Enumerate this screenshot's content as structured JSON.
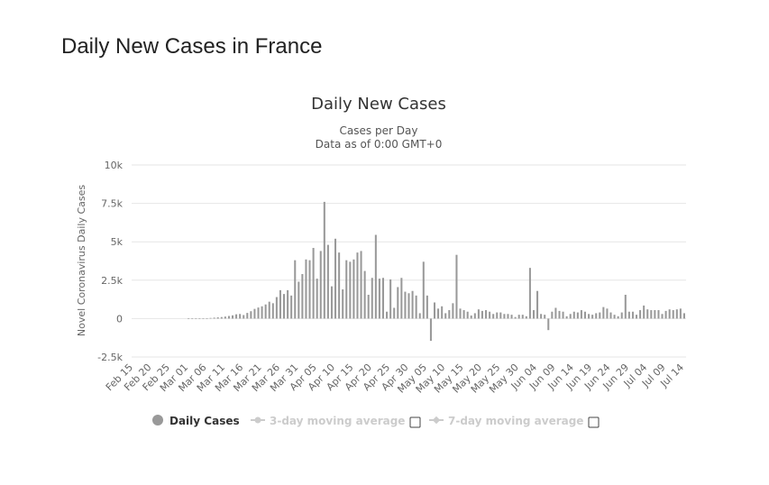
{
  "page": {
    "heading": "Daily New Cases in France"
  },
  "legend": {
    "items": [
      {
        "label": "Daily Cases",
        "active": true,
        "marker": "filled-circle-icon",
        "color": "#999999"
      },
      {
        "label": "3-day moving average",
        "active": false,
        "marker": "line-circle-icon",
        "color": "#cccccc"
      },
      {
        "label": "7-day moving average",
        "active": false,
        "marker": "line-diamond-icon",
        "color": "#cccccc"
      }
    ]
  },
  "chart_data": {
    "type": "bar",
    "title": "Daily New Cases",
    "subtitle_line1": "Cases per Day",
    "subtitle_line2": "Data as of 0:00 GMT+0",
    "ylabel": "Novel Coronavirus Daily Cases",
    "ylim": [
      -2500,
      10000
    ],
    "y_ticks": [
      {
        "value": 10000,
        "label": "10k"
      },
      {
        "value": 7500,
        "label": "7.5k"
      },
      {
        "value": 5000,
        "label": "5k"
      },
      {
        "value": 2500,
        "label": "2.5k"
      },
      {
        "value": 0,
        "label": "0"
      },
      {
        "value": -2500,
        "label": "-2.5k"
      }
    ],
    "x_tick_labels": [
      "Feb 15",
      "Feb 20",
      "Feb 25",
      "Mar 01",
      "Mar 06",
      "Mar 11",
      "Mar 16",
      "Mar 21",
      "Mar 26",
      "Mar 31",
      "Apr 05",
      "Apr 10",
      "Apr 15",
      "Apr 20",
      "Apr 25",
      "Apr 30",
      "May 05",
      "May 10",
      "May 15",
      "May 20",
      "May 25",
      "May 30",
      "Jun 04",
      "Jun 09",
      "Jun 14",
      "Jun 19",
      "Jun 24",
      "Jun 29",
      "Jul 04",
      "Jul 09",
      "Jul 14"
    ],
    "series": [
      {
        "name": "Daily Cases",
        "color": "#999999",
        "values": [
          0,
          0,
          0,
          0,
          0,
          0,
          0,
          0,
          0,
          0,
          0,
          0,
          0,
          0,
          0,
          2,
          6,
          10,
          15,
          20,
          5,
          40,
          60,
          80,
          100,
          130,
          170,
          210,
          280,
          300,
          230,
          370,
          480,
          630,
          720,
          800,
          920,
          1100,
          1000,
          1400,
          1850,
          1600,
          1850,
          1500,
          3800,
          2400,
          2900,
          3850,
          3800,
          4600,
          2600,
          4400,
          7600,
          4800,
          2100,
          5200,
          4300,
          1900,
          3800,
          3700,
          3850,
          4300,
          4400,
          3100,
          1550,
          2650,
          5450,
          2600,
          2650,
          450,
          2550,
          700,
          2050,
          2650,
          1750,
          1650,
          1800,
          1500,
          350,
          3700,
          1500,
          -1450,
          1050,
          650,
          800,
          350,
          550,
          1000,
          4150,
          650,
          550,
          450,
          200,
          350,
          600,
          500,
          550,
          450,
          300,
          400,
          400,
          300,
          300,
          250,
          100,
          250,
          250,
          150,
          3300,
          550,
          1800,
          300,
          250,
          -750,
          450,
          700,
          500,
          450,
          150,
          300,
          450,
          400,
          550,
          450,
          300,
          250,
          350,
          400,
          750,
          650,
          400,
          250,
          150,
          400,
          1550,
          450,
          450,
          250,
          550,
          850,
          600,
          550,
          550,
          550,
          300,
          500,
          600,
          550,
          600,
          650,
          350
        ]
      }
    ],
    "grid": true,
    "legend_position": "bottom"
  }
}
